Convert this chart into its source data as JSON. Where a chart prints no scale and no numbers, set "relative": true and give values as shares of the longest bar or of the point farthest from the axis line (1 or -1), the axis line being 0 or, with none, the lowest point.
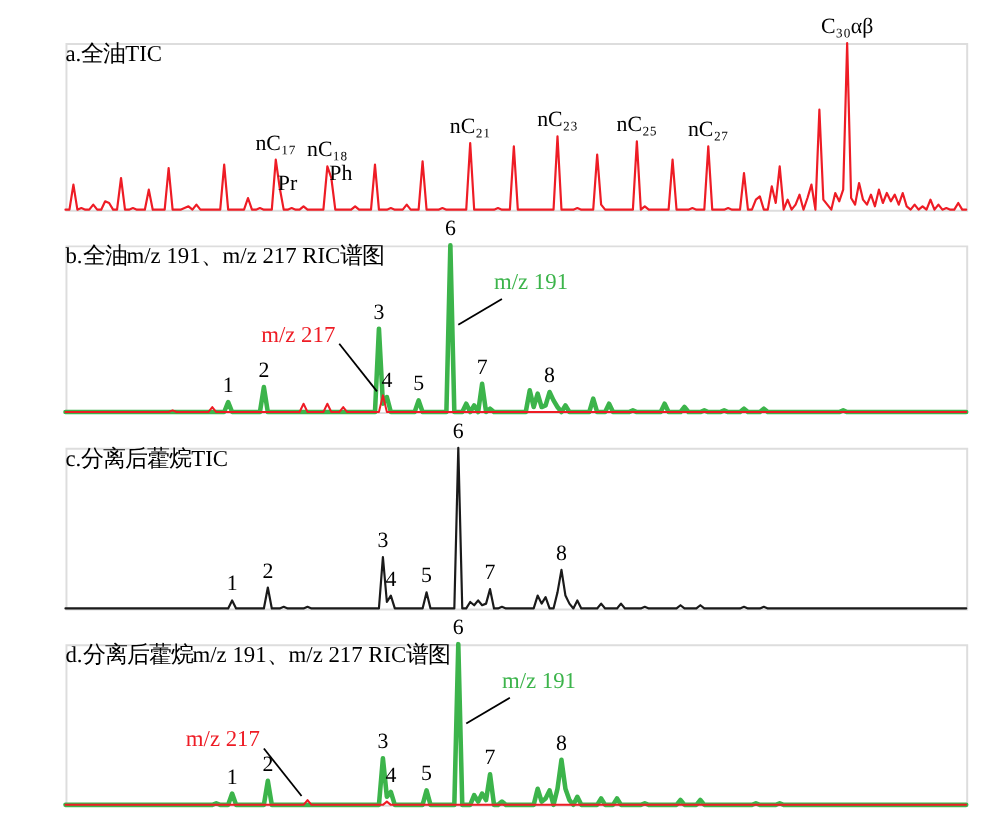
{
  "chart_data": [
    {
      "type": "line",
      "title": "a.全油TIC",
      "relative": true,
      "color": "#ee1c25",
      "categories": [
        null,
        null,
        null,
        null,
        null,
        null,
        null,
        null,
        null,
        null,
        null,
        null,
        null,
        null,
        null,
        null,
        null,
        null,
        null,
        null,
        null,
        null,
        null,
        null,
        null,
        null,
        null,
        null,
        null,
        null,
        null,
        null,
        null,
        null,
        null,
        null,
        null,
        null,
        null,
        null,
        null,
        null,
        null,
        null,
        null,
        null,
        null,
        null,
        null,
        null,
        null,
        null,
        null,
        null,
        null,
        null,
        null,
        null,
        null,
        null,
        null,
        null,
        null,
        null,
        null,
        null,
        null,
        null,
        null,
        null,
        null,
        null,
        null,
        null,
        null,
        null,
        null,
        null,
        null,
        null,
        null,
        null,
        null,
        null,
        null,
        null,
        null,
        null,
        null,
        null,
        null,
        null,
        null,
        null,
        null,
        null,
        null,
        null,
        null,
        null,
        null,
        null,
        null,
        null,
        null,
        null,
        null,
        null,
        null,
        null,
        null,
        null,
        null,
        null,
        null,
        null,
        null,
        null,
        null,
        null,
        null,
        null,
        null,
        null,
        null,
        null,
        null,
        null,
        null,
        null,
        null,
        null,
        null,
        null,
        null,
        null,
        null,
        null,
        null,
        null,
        null,
        null,
        null,
        null,
        null,
        null,
        null,
        null,
        null,
        null,
        null,
        null,
        null,
        null,
        null,
        null,
        null,
        null,
        null,
        null,
        null,
        null,
        null,
        null,
        null,
        null,
        null,
        null,
        null,
        null,
        null,
        null,
        null,
        null,
        null,
        null,
        null,
        null,
        null,
        null,
        null,
        null,
        null,
        null,
        null,
        null,
        null,
        null,
        null,
        null,
        null,
        null,
        null,
        null,
        null,
        null,
        null,
        null,
        null,
        null,
        null,
        null,
        null,
        null,
        null,
        null,
        null,
        null,
        null,
        null,
        null,
        null,
        null,
        null,
        null,
        null,
        null,
        null,
        null,
        null,
        null,
        null,
        null,
        null,
        null,
        null,
        null,
        null
      ],
      "values": [
        0,
        0,
        0.15,
        0,
        0.01,
        0,
        0,
        0.03,
        0,
        0,
        0.05,
        0.04,
        0,
        0,
        0.19,
        0,
        0,
        0.01,
        0,
        0,
        0,
        0.12,
        0,
        0,
        0,
        0,
        0.25,
        0,
        0,
        0,
        0.01,
        0.02,
        0,
        0.03,
        0,
        0,
        0,
        0,
        0,
        0,
        0.27,
        0,
        0,
        0,
        0,
        0,
        0.07,
        0,
        0,
        0.01,
        0,
        0,
        0,
        0.3,
        0.13,
        0,
        0,
        0.01,
        0,
        0,
        0.02,
        0,
        0,
        0,
        0,
        0,
        0.26,
        0.19,
        0,
        0,
        0,
        0,
        0,
        0.02,
        0,
        0,
        0,
        0,
        0.27,
        0,
        0,
        0,
        0.01,
        0,
        0,
        0,
        0.03,
        0,
        0,
        0,
        0.29,
        0,
        0,
        0,
        0,
        0.01,
        0,
        0,
        0,
        0,
        0,
        0,
        0.4,
        0,
        0,
        0,
        0,
        0,
        0,
        0.01,
        0,
        0,
        0,
        0.38,
        0,
        0,
        0,
        0,
        0,
        0,
        0,
        0,
        0,
        0,
        0.44,
        0,
        0,
        0,
        0,
        0.01,
        0,
        0,
        0,
        0,
        0.33,
        0.03,
        0,
        0,
        0,
        0,
        0,
        0,
        0,
        0,
        0.41,
        0,
        0.02,
        0,
        0,
        0,
        0,
        0,
        0,
        0.3,
        0,
        0,
        0,
        0,
        0.01,
        0,
        0,
        0,
        0.38,
        0,
        0,
        0,
        0,
        0.01,
        0,
        0,
        0,
        0.22,
        0,
        0,
        0.06,
        0.08,
        0,
        0,
        0.14,
        0.04,
        0.26,
        0,
        0.06,
        0,
        0.03,
        0.09,
        0,
        0.07,
        0.15,
        0,
        0.6,
        0.06,
        0.03,
        0,
        0.1,
        0.05,
        0.12,
        1,
        0.07,
        0.03,
        0.16,
        0.06,
        0.03,
        0.09,
        0.02,
        0.12,
        0.04,
        0.1,
        0.05,
        0.09,
        0.03,
        0.1,
        0.02,
        0,
        0.03,
        0,
        0.02,
        0,
        0.06,
        0,
        0.03,
        0,
        0.01,
        0,
        0,
        0.04,
        0,
        0
      ],
      "annotations": [
        {
          "text": "nC₁₇",
          "y": 0.3
        },
        {
          "text": "Pr",
          "y": 0.13
        },
        {
          "text": "nC₁₈",
          "y": 0.26
        },
        {
          "text": "Ph",
          "y": 0.19
        },
        {
          "text": "nC₂₁",
          "y": 0.4
        },
        {
          "text": "nC₂₃",
          "y": 0.44
        },
        {
          "text": "nC₂₅",
          "y": 0.41
        },
        {
          "text": "nC₂₇",
          "y": 0.38
        },
        {
          "text": "C₃₀αβ",
          "y": 1
        }
      ]
    },
    {
      "type": "line",
      "title": "b.全油m/z 191、m/z 217 RIC谱图",
      "relative": true,
      "categories": [
        null,
        null,
        null,
        null,
        null,
        null,
        null,
        null,
        null,
        null,
        null,
        null,
        null,
        null,
        null,
        null,
        null,
        null,
        null,
        null,
        null,
        null,
        null,
        null,
        null,
        null,
        null,
        null,
        null,
        null,
        null,
        null,
        null,
        null,
        null,
        null,
        null,
        null,
        null,
        null,
        null,
        null,
        null,
        null,
        null,
        null,
        null,
        null,
        null,
        null,
        null,
        null,
        null,
        null,
        null,
        null,
        null,
        null,
        null,
        null,
        null,
        null,
        null,
        null,
        null,
        null,
        null,
        null,
        null,
        null,
        null,
        null,
        null,
        null,
        null,
        null,
        null,
        null,
        null,
        null,
        null,
        null,
        null,
        null,
        null,
        null,
        null,
        null,
        null,
        null,
        null,
        null,
        null,
        null,
        null,
        null,
        null,
        null,
        null,
        null,
        null,
        null,
        null,
        null,
        null,
        null,
        null,
        null,
        null,
        null,
        null,
        null,
        null,
        null,
        null,
        null,
        null,
        null,
        null,
        null,
        null,
        null,
        null,
        null,
        null,
        null,
        null,
        null,
        null,
        null,
        null,
        null,
        null,
        null,
        null,
        null,
        null,
        null,
        null,
        null,
        null,
        null,
        null,
        null,
        null,
        null,
        null,
        null,
        null,
        null,
        null,
        null,
        null,
        null,
        null,
        null,
        null,
        null,
        null,
        null,
        null,
        null,
        null,
        null,
        null,
        null,
        null,
        null,
        null,
        null,
        null,
        null,
        null,
        null,
        null,
        null,
        null,
        null,
        null,
        null,
        null,
        null,
        null,
        null,
        null,
        null,
        null,
        null,
        null,
        null,
        null,
        null,
        null,
        null,
        null,
        null,
        null,
        null,
        null,
        null,
        null,
        null,
        null,
        null,
        null,
        null,
        null,
        null,
        null,
        null,
        null,
        null,
        null,
        null,
        null,
        null,
        null,
        null,
        null,
        null,
        null,
        null,
        null,
        null,
        null,
        null,
        null,
        null
      ],
      "series": [
        {
          "name": "m/z 191",
          "color": "#3cb44b",
          "values": [
            0,
            0,
            0,
            0,
            0,
            0,
            0,
            0,
            0,
            0,
            0,
            0,
            0,
            0,
            0,
            0,
            0,
            0,
            0,
            0,
            0,
            0,
            0,
            0,
            0,
            0,
            0,
            0,
            0,
            0,
            0,
            0,
            0,
            0,
            0,
            0,
            0,
            0,
            0,
            0,
            0,
            0.06,
            0,
            0,
            0,
            0,
            0,
            0,
            0,
            0,
            0.15,
            0,
            0,
            0,
            0,
            0,
            0,
            0,
            0,
            0,
            0,
            0,
            0,
            0,
            0,
            0,
            0,
            0,
            0,
            0,
            0,
            0,
            0,
            0,
            0,
            0,
            0,
            0,
            0,
            0.5,
            0.05,
            0.09,
            0,
            0,
            0,
            0,
            0,
            0,
            0,
            0.07,
            0,
            0,
            0,
            0,
            0,
            0,
            0,
            1,
            0,
            0,
            0,
            0.05,
            0,
            0.04,
            0,
            0.17,
            0,
            0.02,
            0,
            0,
            0,
            0,
            0,
            0,
            0,
            0,
            0,
            0.13,
            0.03,
            0.11,
            0.03,
            0.04,
            0.12,
            0.07,
            0.03,
            0,
            0.04,
            0,
            0,
            0,
            0,
            0,
            0,
            0.08,
            0,
            0,
            0,
            0.05,
            0,
            0,
            0,
            0,
            0,
            0.01,
            0,
            0,
            0,
            0,
            0,
            0,
            0,
            0.05,
            0,
            0,
            0,
            0,
            0.03,
            0,
            0,
            0,
            0,
            0.01,
            0,
            0,
            0,
            0,
            0.01,
            0,
            0,
            0,
            0,
            0.02,
            0,
            0,
            0,
            0,
            0.02,
            0,
            0,
            0,
            0,
            0,
            0,
            0,
            0,
            0,
            0,
            0,
            0,
            0,
            0,
            0,
            0,
            0,
            0,
            0,
            0.01,
            0,
            0,
            0,
            0,
            0,
            0,
            0,
            0,
            0,
            0,
            0,
            0,
            0,
            0,
            0,
            0,
            0,
            0,
            0,
            0,
            0,
            0,
            0,
            0,
            0,
            0,
            0,
            0,
            0,
            0,
            0
          ]
        },
        {
          "name": "m/z 217",
          "color": "#ee1c25",
          "values": [
            0,
            0,
            0,
            0,
            0,
            0,
            0,
            0,
            0,
            0,
            0,
            0,
            0,
            0,
            0,
            0,
            0,
            0,
            0,
            0,
            0,
            0,
            0,
            0,
            0,
            0,
            0,
            0.01,
            0,
            0,
            0,
            0,
            0,
            0,
            0,
            0,
            0,
            0.03,
            0,
            0,
            0,
            0,
            0,
            0,
            0,
            0,
            0,
            0,
            0,
            0,
            0,
            0,
            0,
            0,
            0,
            0,
            0,
            0,
            0,
            0,
            0.05,
            0,
            0,
            0,
            0,
            0,
            0.05,
            0,
            0,
            0,
            0.03,
            0,
            0,
            0,
            0,
            0,
            0,
            0,
            0,
            0,
            0.1,
            0,
            0,
            0,
            0,
            0,
            0,
            0,
            0,
            0,
            0,
            0,
            0,
            0,
            0,
            0,
            0,
            0,
            0,
            0,
            0,
            0,
            0,
            0,
            0,
            0,
            0,
            0,
            0,
            0,
            0,
            0,
            0,
            0,
            0,
            0,
            0,
            0,
            0,
            0,
            0,
            0,
            0,
            0,
            0,
            0,
            0,
            0,
            0,
            0,
            0,
            0,
            0,
            0,
            0,
            0,
            0,
            0,
            0,
            0,
            0,
            0,
            0,
            0,
            0,
            0,
            0,
            0,
            0,
            0,
            0,
            0,
            0,
            0,
            0,
            0,
            0,
            0,
            0,
            0,
            0,
            0,
            0,
            0,
            0,
            0,
            0,
            0,
            0,
            0,
            0,
            0,
            0,
            0,
            0,
            0,
            0,
            0,
            0,
            0,
            0,
            0,
            0,
            0,
            0,
            0,
            0,
            0,
            0,
            0,
            0,
            0,
            0,
            0,
            0,
            0,
            0,
            0,
            0,
            0,
            0,
            0,
            0,
            0,
            0,
            0,
            0,
            0,
            0,
            0,
            0,
            0,
            0,
            0,
            0,
            0,
            0,
            0,
            0,
            0,
            0,
            0,
            0,
            0,
            0,
            0,
            0,
            0
          ]
        }
      ],
      "annotations": [
        {
          "text": "1",
          "y": 0.06
        },
        {
          "text": "2",
          "y": 0.15
        },
        {
          "text": "3",
          "y": 0.5
        },
        {
          "text": "4",
          "y": 0.09
        },
        {
          "text": "5",
          "y": 0.07
        },
        {
          "text": "6",
          "y": 1
        },
        {
          "text": "7",
          "y": 0.17
        },
        {
          "text": "8",
          "y": 0.12
        }
      ]
    },
    {
      "type": "line",
      "title": "c.分离后藿烷TIC",
      "relative": true,
      "color": "#1a1a1a",
      "categories": [
        null,
        null,
        null,
        null,
        null,
        null,
        null,
        null,
        null,
        null,
        null,
        null,
        null,
        null,
        null,
        null,
        null,
        null,
        null,
        null,
        null,
        null,
        null,
        null,
        null,
        null,
        null,
        null,
        null,
        null,
        null,
        null,
        null,
        null,
        null,
        null,
        null,
        null,
        null,
        null,
        null,
        null,
        null,
        null,
        null,
        null,
        null,
        null,
        null,
        null,
        null,
        null,
        null,
        null,
        null,
        null,
        null,
        null,
        null,
        null,
        null,
        null,
        null,
        null,
        null,
        null,
        null,
        null,
        null,
        null,
        null,
        null,
        null,
        null,
        null,
        null,
        null,
        null,
        null,
        null,
        null,
        null,
        null,
        null,
        null,
        null,
        null,
        null,
        null,
        null,
        null,
        null,
        null,
        null,
        null,
        null,
        null,
        null,
        null,
        null,
        null,
        null,
        null,
        null,
        null,
        null,
        null,
        null,
        null,
        null,
        null,
        null,
        null,
        null,
        null,
        null,
        null,
        null,
        null,
        null,
        null,
        null,
        null,
        null,
        null,
        null,
        null,
        null,
        null,
        null,
        null,
        null,
        null,
        null,
        null,
        null,
        null,
        null,
        null,
        null,
        null,
        null,
        null,
        null,
        null,
        null,
        null,
        null,
        null,
        null,
        null,
        null,
        null,
        null,
        null,
        null,
        null,
        null,
        null,
        null,
        null,
        null,
        null,
        null,
        null,
        null,
        null,
        null,
        null,
        null,
        null,
        null,
        null,
        null,
        null,
        null,
        null,
        null,
        null,
        null,
        null,
        null,
        null,
        null,
        null,
        null,
        null,
        null,
        null,
        null,
        null,
        null,
        null,
        null,
        null,
        null,
        null,
        null,
        null,
        null,
        null,
        null,
        null,
        null,
        null,
        null,
        null,
        null,
        null,
        null,
        null,
        null,
        null,
        null,
        null,
        null,
        null,
        null,
        null,
        null,
        null,
        null,
        null,
        null,
        null,
        null,
        null,
        null
      ],
      "values": [
        0,
        0,
        0,
        0,
        0,
        0,
        0,
        0,
        0,
        0,
        0,
        0,
        0,
        0,
        0,
        0,
        0,
        0,
        0,
        0,
        0,
        0,
        0,
        0,
        0,
        0,
        0,
        0,
        0,
        0,
        0,
        0,
        0,
        0,
        0,
        0,
        0,
        0,
        0,
        0,
        0,
        0,
        0.05,
        0,
        0,
        0,
        0,
        0,
        0,
        0,
        0,
        0.13,
        0,
        0,
        0,
        0.01,
        0,
        0,
        0,
        0,
        0,
        0.01,
        0,
        0,
        0,
        0,
        0,
        0,
        0,
        0,
        0,
        0,
        0,
        0,
        0,
        0,
        0,
        0,
        0,
        0,
        0.32,
        0.04,
        0.08,
        0,
        0,
        0,
        0,
        0,
        0,
        0,
        0,
        0.1,
        0,
        0,
        0,
        0,
        0,
        0,
        0,
        1,
        0,
        0,
        0.04,
        0.02,
        0.05,
        0.02,
        0.03,
        0.12,
        0,
        0,
        0.01,
        0,
        0,
        0,
        0,
        0,
        0,
        0,
        0,
        0.08,
        0.03,
        0.07,
        0,
        0,
        0.1,
        0.24,
        0.08,
        0.03,
        0,
        0.05,
        0,
        0,
        0,
        0,
        0,
        0.03,
        0,
        0,
        0,
        0,
        0.03,
        0,
        0,
        0,
        0,
        0,
        0.01,
        0,
        0,
        0,
        0,
        0,
        0,
        0,
        0,
        0.02,
        0,
        0,
        0,
        0,
        0.02,
        0,
        0,
        0,
        0,
        0,
        0,
        0,
        0,
        0,
        0,
        0.01,
        0,
        0,
        0,
        0,
        0.01,
        0,
        0,
        0,
        0,
        0,
        0,
        0,
        0,
        0,
        0,
        0,
        0,
        0,
        0,
        0,
        0,
        0,
        0,
        0,
        0,
        0,
        0,
        0,
        0,
        0,
        0,
        0,
        0,
        0,
        0,
        0,
        0,
        0,
        0,
        0,
        0,
        0,
        0,
        0,
        0,
        0,
        0,
        0,
        0,
        0,
        0,
        0,
        0,
        0,
        0,
        0
      ],
      "annotations": [
        {
          "text": "1",
          "y": 0.05
        },
        {
          "text": "2",
          "y": 0.13
        },
        {
          "text": "3",
          "y": 0.32
        },
        {
          "text": "4",
          "y": 0.08
        },
        {
          "text": "5",
          "y": 0.1
        },
        {
          "text": "6",
          "y": 1
        },
        {
          "text": "7",
          "y": 0.12
        },
        {
          "text": "8",
          "y": 0.24
        }
      ]
    },
    {
      "type": "line",
      "title": "d.分离后藿烷m/z 191、m/z 217 RIC谱图",
      "relative": true,
      "categories": [
        null,
        null,
        null,
        null,
        null,
        null,
        null,
        null,
        null,
        null,
        null,
        null,
        null,
        null,
        null,
        null,
        null,
        null,
        null,
        null,
        null,
        null,
        null,
        null,
        null,
        null,
        null,
        null,
        null,
        null,
        null,
        null,
        null,
        null,
        null,
        null,
        null,
        null,
        null,
        null,
        null,
        null,
        null,
        null,
        null,
        null,
        null,
        null,
        null,
        null,
        null,
        null,
        null,
        null,
        null,
        null,
        null,
        null,
        null,
        null,
        null,
        null,
        null,
        null,
        null,
        null,
        null,
        null,
        null,
        null,
        null,
        null,
        null,
        null,
        null,
        null,
        null,
        null,
        null,
        null,
        null,
        null,
        null,
        null,
        null,
        null,
        null,
        null,
        null,
        null,
        null,
        null,
        null,
        null,
        null,
        null,
        null,
        null,
        null,
        null,
        null,
        null,
        null,
        null,
        null,
        null,
        null,
        null,
        null,
        null,
        null,
        null,
        null,
        null,
        null,
        null,
        null,
        null,
        null,
        null,
        null,
        null,
        null,
        null,
        null,
        null,
        null,
        null,
        null,
        null,
        null,
        null,
        null,
        null,
        null,
        null,
        null,
        null,
        null,
        null,
        null,
        null,
        null,
        null,
        null,
        null,
        null,
        null,
        null,
        null,
        null,
        null,
        null,
        null,
        null,
        null,
        null,
        null,
        null,
        null,
        null,
        null,
        null,
        null,
        null,
        null,
        null,
        null,
        null,
        null,
        null,
        null,
        null,
        null,
        null,
        null,
        null,
        null,
        null,
        null,
        null,
        null,
        null,
        null,
        null,
        null,
        null,
        null,
        null,
        null,
        null,
        null,
        null,
        null,
        null,
        null,
        null,
        null,
        null,
        null,
        null,
        null,
        null,
        null,
        null,
        null,
        null,
        null,
        null,
        null,
        null,
        null,
        null,
        null,
        null,
        null,
        null,
        null,
        null,
        null,
        null,
        null,
        null,
        null,
        null,
        null,
        null,
        null
      ],
      "series": [
        {
          "name": "m/z 191",
          "color": "#3cb44b",
          "values": [
            0,
            0,
            0,
            0,
            0,
            0,
            0,
            0,
            0,
            0,
            0,
            0,
            0,
            0,
            0,
            0,
            0,
            0,
            0,
            0,
            0,
            0,
            0,
            0,
            0,
            0,
            0,
            0,
            0,
            0,
            0,
            0,
            0,
            0,
            0,
            0,
            0,
            0,
            0.01,
            0,
            0,
            0,
            0.07,
            0,
            0,
            0,
            0,
            0,
            0,
            0,
            0,
            0.15,
            0,
            0,
            0,
            0,
            0,
            0,
            0,
            0,
            0,
            0,
            0,
            0,
            0,
            0,
            0,
            0,
            0,
            0,
            0,
            0,
            0,
            0,
            0,
            0,
            0,
            0,
            0,
            0,
            0.29,
            0.05,
            0.08,
            0,
            0,
            0,
            0,
            0,
            0,
            0,
            0,
            0.09,
            0,
            0,
            0,
            0,
            0,
            0,
            0,
            1,
            0,
            0,
            0,
            0.06,
            0.02,
            0.07,
            0.03,
            0.19,
            0,
            0,
            0.02,
            0,
            0,
            0,
            0,
            0,
            0,
            0,
            0,
            0.1,
            0.02,
            0.04,
            0.09,
            0,
            0.1,
            0.28,
            0.1,
            0.03,
            0,
            0.05,
            0,
            0,
            0,
            0,
            0,
            0.04,
            0,
            0,
            0,
            0.04,
            0,
            0,
            0,
            0,
            0,
            0,
            0.01,
            0,
            0,
            0,
            0,
            0,
            0,
            0,
            0,
            0.03,
            0,
            0,
            0,
            0,
            0.03,
            0,
            0,
            0,
            0,
            0,
            0,
            0,
            0,
            0,
            0,
            0,
            0,
            0,
            0.01,
            0,
            0,
            0,
            0,
            0,
            0.01,
            0,
            0,
            0,
            0,
            0,
            0,
            0,
            0,
            0,
            0,
            0,
            0,
            0,
            0,
            0,
            0,
            0,
            0,
            0,
            0,
            0,
            0,
            0,
            0,
            0,
            0,
            0,
            0,
            0,
            0,
            0,
            0,
            0,
            0,
            0,
            0,
            0,
            0,
            0,
            0,
            0,
            0,
            0,
            0,
            0,
            0,
            0
          ]
        },
        {
          "name": "m/z 217",
          "color": "#ee1c25",
          "values": [
            0,
            0,
            0,
            0,
            0,
            0,
            0,
            0,
            0,
            0,
            0,
            0,
            0,
            0,
            0,
            0,
            0,
            0,
            0,
            0,
            0,
            0,
            0,
            0,
            0,
            0,
            0,
            0,
            0,
            0,
            0,
            0,
            0,
            0,
            0,
            0,
            0,
            0,
            0,
            0,
            0,
            0,
            0,
            0,
            0,
            0,
            0,
            0,
            0,
            0,
            0,
            0,
            0,
            0,
            0,
            0,
            0,
            0,
            0,
            0,
            0,
            0.03,
            0,
            0,
            0,
            0,
            0,
            0,
            0,
            0,
            0,
            0,
            0,
            0,
            0,
            0,
            0,
            0,
            0,
            0,
            0,
            0.02,
            0,
            0,
            0,
            0,
            0,
            0,
            0,
            0,
            0,
            0,
            0,
            0,
            0,
            0,
            0,
            0,
            0,
            0,
            0,
            0,
            0,
            0,
            0,
            0,
            0,
            0,
            0,
            0,
            0,
            0,
            0,
            0,
            0,
            0,
            0,
            0,
            0,
            0,
            0,
            0,
            0,
            0,
            0,
            0,
            0,
            0,
            0,
            0,
            0,
            0,
            0,
            0,
            0,
            0,
            0,
            0,
            0,
            0,
            0,
            0,
            0,
            0,
            0,
            0,
            0,
            0,
            0,
            0,
            0,
            0,
            0,
            0,
            0,
            0,
            0,
            0,
            0,
            0,
            0,
            0,
            0,
            0,
            0,
            0,
            0,
            0,
            0,
            0,
            0,
            0,
            0,
            0,
            0,
            0,
            0,
            0,
            0,
            0,
            0,
            0,
            0,
            0,
            0,
            0,
            0,
            0,
            0,
            0,
            0,
            0,
            0,
            0,
            0,
            0,
            0,
            0,
            0,
            0,
            0,
            0,
            0,
            0,
            0,
            0,
            0,
            0,
            0,
            0,
            0,
            0,
            0,
            0,
            0,
            0,
            0,
            0,
            0,
            0,
            0,
            0,
            0,
            0,
            0,
            0,
            0,
            0
          ]
        }
      ],
      "annotations": [
        {
          "text": "1",
          "y": 0.07
        },
        {
          "text": "2",
          "y": 0.15
        },
        {
          "text": "3",
          "y": 0.29
        },
        {
          "text": "4",
          "y": 0.08
        },
        {
          "text": "5",
          "y": 0.09
        },
        {
          "text": "6",
          "y": 1
        },
        {
          "text": "7",
          "y": 0.19
        },
        {
          "text": "8",
          "y": 0.28
        }
      ]
    }
  ]
}
